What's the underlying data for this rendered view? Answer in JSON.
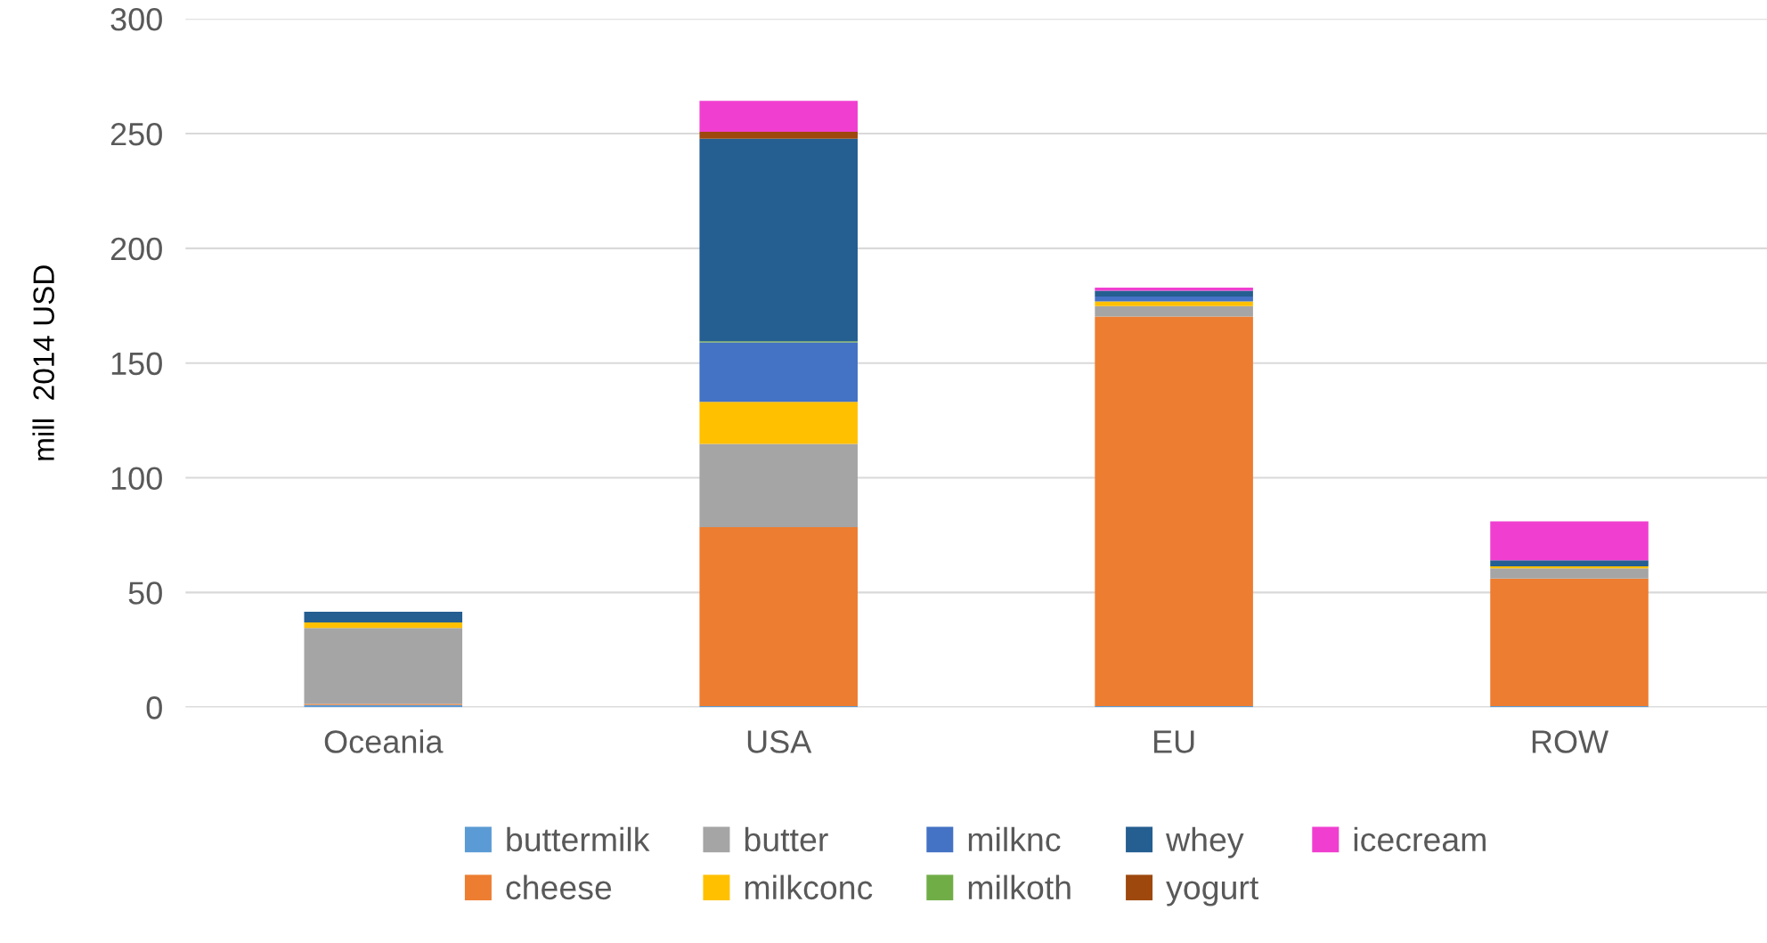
{
  "chart_data": {
    "type": "bar",
    "stacked": true,
    "ylabel": "mill  2014 USD",
    "categories": [
      "Oceania",
      "USA",
      "EU",
      "ROW"
    ],
    "series": [
      {
        "name": "buttermilk",
        "color": "#5b9bd5",
        "values": [
          1,
          0.5,
          0.5,
          0.5
        ]
      },
      {
        "name": "cheese",
        "color": "#ed7d31",
        "values": [
          0.5,
          78,
          169.8,
          55.6
        ]
      },
      {
        "name": "butter",
        "color": "#a5a5a5",
        "values": [
          33,
          36.3,
          4.5,
          4.4
        ]
      },
      {
        "name": "milkconc",
        "color": "#ffc000",
        "values": [
          2.5,
          18.3,
          2.1,
          0.9
        ]
      },
      {
        "name": "milknc",
        "color": "#4472c4",
        "values": [
          0,
          25.9,
          2.1,
          0
        ]
      },
      {
        "name": "milkoth",
        "color": "#70ad47",
        "values": [
          0,
          0.5,
          0,
          0
        ]
      },
      {
        "name": "whey",
        "color": "#255e91",
        "values": [
          4.6,
          88.3,
          2.5,
          2.6
        ]
      },
      {
        "name": "yogurt",
        "color": "#9e480e",
        "values": [
          0,
          3,
          0,
          0
        ]
      },
      {
        "name": "icecream",
        "color": "#f03fd0",
        "values": [
          0,
          13.5,
          1.4,
          17
        ]
      }
    ],
    "ylim": [
      0,
      300
    ],
    "yticks": [
      0,
      50,
      100,
      150,
      200,
      250,
      300
    ],
    "grid": "y",
    "legend": "bottom"
  }
}
